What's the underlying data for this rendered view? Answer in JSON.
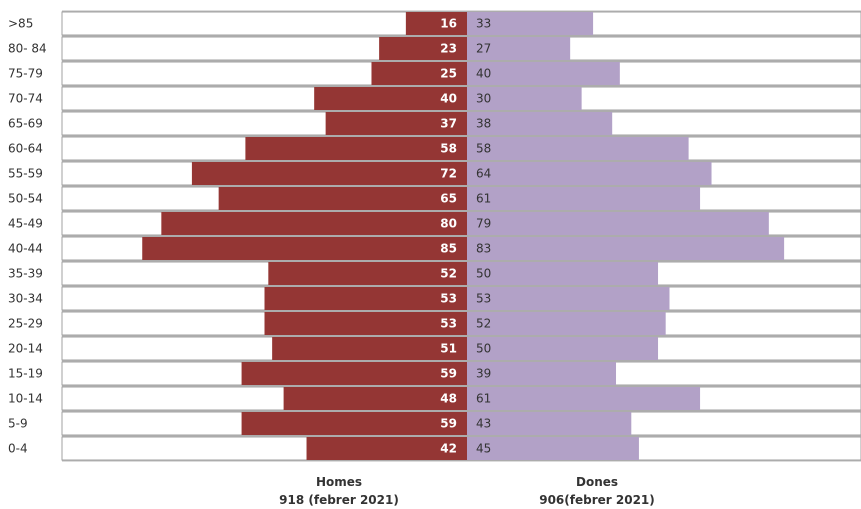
{
  "chart_data": {
    "type": "bar",
    "orientation": "horizontal-pyramid",
    "title": "",
    "categories": [
      ">85",
      "80- 84",
      "75-79",
      "70-74",
      "65-69",
      "60-64",
      "55-59",
      "50-54",
      "45-49",
      "40-44",
      "35-39",
      "30-34",
      "25-29",
      "20-14",
      "15-19",
      "10-14",
      "5-9",
      "0-4"
    ],
    "series": [
      {
        "name": "Homes",
        "side": "left",
        "color": "#943634",
        "values": [
          16,
          23,
          25,
          40,
          37,
          58,
          72,
          65,
          80,
          85,
          52,
          53,
          53,
          51,
          59,
          48,
          59,
          42
        ]
      },
      {
        "name": "Dones",
        "side": "right",
        "color": "#b2a1c7",
        "values": [
          33,
          27,
          40,
          30,
          38,
          58,
          64,
          61,
          79,
          83,
          50,
          53,
          52,
          50,
          39,
          61,
          43,
          45
        ]
      }
    ],
    "xlabels": {
      "left": {
        "name": "Homes",
        "total": "918 (febrer 2021)"
      },
      "right": {
        "name": "Dones",
        "total": "906(febrer 2021)"
      }
    },
    "xlim": [
      0,
      106
    ],
    "grid": true,
    "legend": "none"
  }
}
